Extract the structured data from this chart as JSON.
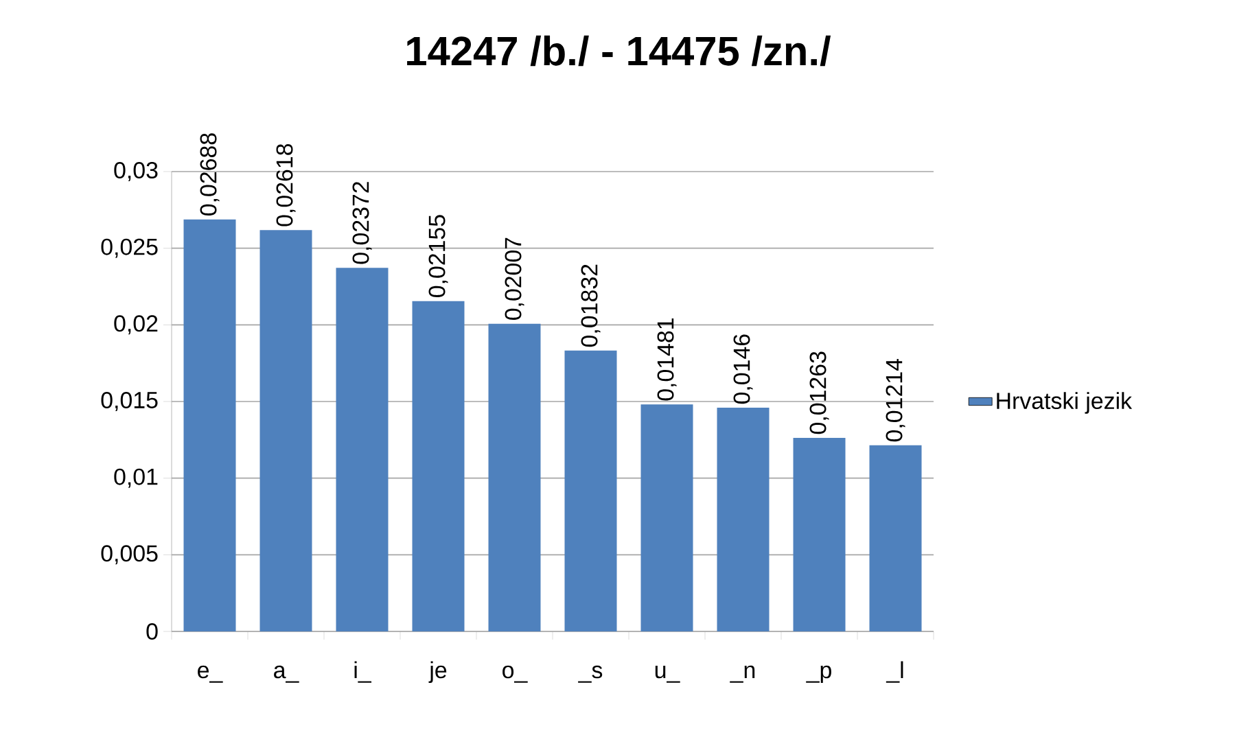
{
  "chart_data": {
    "type": "bar",
    "title": "14247 /b./ - 14475 /zn./",
    "categories": [
      "e_",
      "a_",
      "i_",
      "je",
      "o_",
      "_s",
      "u_",
      "_n",
      "_p",
      "_l"
    ],
    "series": [
      {
        "name": "Hrvatski jezik",
        "color": "#4f81bd",
        "values": [
          0.02688,
          0.02618,
          0.02372,
          0.02155,
          0.02007,
          0.01832,
          0.01481,
          0.0146,
          0.01263,
          0.01214
        ],
        "value_labels": [
          "0,02688",
          "0,02618",
          "0,02372",
          "0,02155",
          "0,02007",
          "0,01832",
          "0,01481",
          "0,0146",
          "0,01263",
          "0,01214"
        ]
      }
    ],
    "ylim": [
      0,
      0.03
    ],
    "yticks": [
      {
        "value": 0,
        "label": "0"
      },
      {
        "value": 0.005,
        "label": "0,005"
      },
      {
        "value": 0.01,
        "label": "0,01"
      },
      {
        "value": 0.015,
        "label": "0,015"
      },
      {
        "value": 0.02,
        "label": "0,02"
      },
      {
        "value": 0.025,
        "label": "0,025"
      },
      {
        "value": 0.03,
        "label": "0,03"
      }
    ],
    "grid": "y",
    "legend": "right"
  }
}
